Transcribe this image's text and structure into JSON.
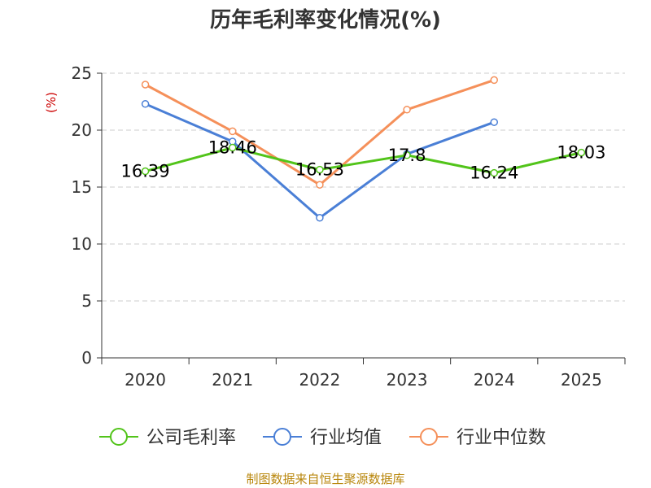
{
  "title": "历年毛利率变化情况(%)",
  "source": "制图数据来自恒生聚源数据库",
  "chart_data": {
    "type": "line",
    "title": "历年毛利率变化情况(%)",
    "ylabel": "(%)",
    "xlabel": "",
    "categories": [
      "2020",
      "2021",
      "2022",
      "2023",
      "2024",
      "2025"
    ],
    "ylim": [
      0,
      25
    ],
    "yticks": [
      0,
      5,
      10,
      15,
      20,
      25
    ],
    "grid": true,
    "legend": "bottom",
    "series": [
      {
        "name": "公司毛利率",
        "color": "#52c41a",
        "values": [
          16.39,
          18.46,
          16.53,
          17.8,
          16.24,
          18.03
        ],
        "labels": [
          "16.39",
          "18.46",
          "16.53",
          "17.8",
          "16.24",
          "18.03"
        ]
      },
      {
        "name": "行业均值",
        "color": "#4a7fd6",
        "values": [
          22.3,
          19.0,
          12.3,
          17.9,
          20.7,
          null
        ]
      },
      {
        "name": "行业中位数",
        "color": "#f5905a",
        "values": [
          24.0,
          19.9,
          15.2,
          21.8,
          24.4,
          null
        ]
      }
    ]
  }
}
